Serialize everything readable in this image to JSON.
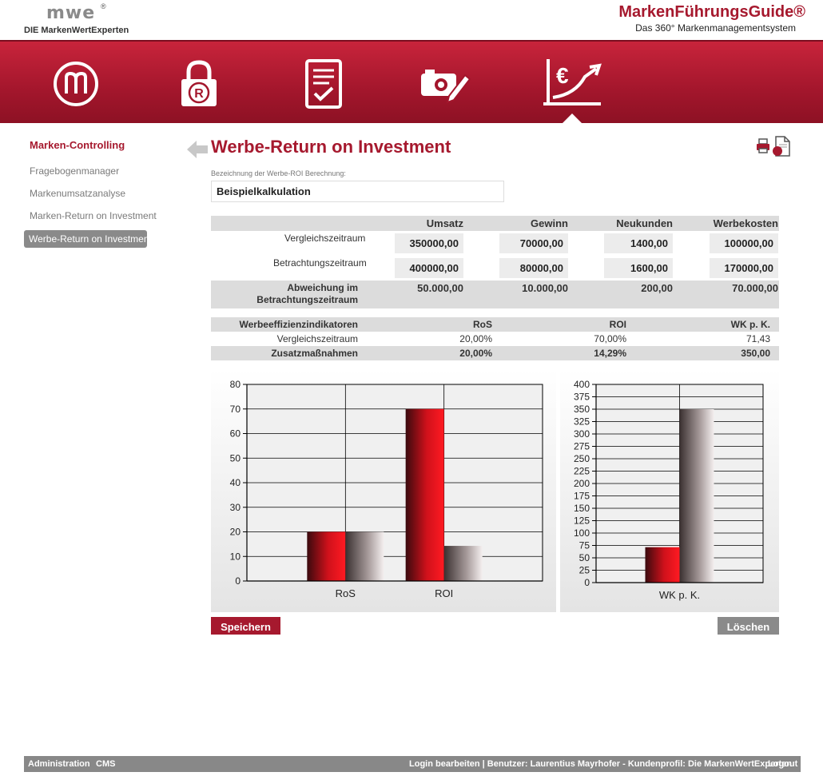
{
  "header": {
    "logo_text": "mwe",
    "logo_reg": "®",
    "logo_sub": "DIE MarkenWertExperten",
    "brand_title": "MarkenFührungsGuide®",
    "brand_subtitle": "Das 360° Markenmanagementsystem"
  },
  "nav_icons": [
    "m-brand-icon",
    "lock-registered-icon",
    "document-check-icon",
    "camera-pencil-icon",
    "euro-growth-chart-icon"
  ],
  "sidebar": {
    "title": "Marken-Controlling",
    "items": [
      {
        "label": "Fragebogenmanager"
      },
      {
        "label": "Markenumsatzanalyse"
      },
      {
        "label": "Marken-Return on Investment"
      },
      {
        "label": "Werbe-Return on Investment"
      }
    ]
  },
  "main": {
    "title": "Werbe-Return on Investment",
    "field_label": "Bezeichnung der Werbe-ROI Berechnung:",
    "field_value": "Beispielkalkulation"
  },
  "table1": {
    "headers": [
      "Umsatz",
      "Gewinn",
      "Neukunden",
      "Werbekosten"
    ],
    "rows": [
      {
        "label": "Vergleichszeitraum",
        "values": [
          "350000,00",
          "70000,00",
          "1400,00",
          "100000,00"
        ]
      },
      {
        "label": "Betrachtungszeitraum",
        "values": [
          "400000,00",
          "80000,00",
          "1600,00",
          "170000,00"
        ]
      }
    ],
    "deviation_label_1": "Abweichung im",
    "deviation_label_2": "Betrachtungszeitraum",
    "deviation_values": [
      "50.000,00",
      "10.000,00",
      "200,00",
      "70.000,00"
    ]
  },
  "table2": {
    "header_label": "Werbeeffizienzindikatoren",
    "headers": [
      "RoS",
      "ROI",
      "WK p. K."
    ],
    "rows": [
      {
        "label": "Vergleichszeitraum",
        "values": [
          "20,00%",
          "70,00%",
          "71,43"
        ]
      },
      {
        "label": "Zusatzmaßnahmen",
        "values": [
          "20,00%",
          "14,29%",
          "350,00"
        ]
      }
    ]
  },
  "chart_data": [
    {
      "type": "bar",
      "categories": [
        "RoS",
        "ROI"
      ],
      "series": [
        {
          "values": [
            20,
            70
          ],
          "color": "#d0111b"
        },
        {
          "values": [
            20,
            14.29
          ],
          "color": "#a89c9c"
        }
      ],
      "ylim": [
        0,
        80
      ],
      "yticks": [
        0,
        10,
        20,
        30,
        40,
        50,
        60,
        70,
        80
      ],
      "grid": true
    },
    {
      "type": "bar",
      "categories": [
        "WK p. K."
      ],
      "series": [
        {
          "values": [
            71.43
          ],
          "color": "#d0111b"
        },
        {
          "values": [
            350
          ],
          "color": "#a89c9c"
        }
      ],
      "ylim": [
        0,
        400
      ],
      "yticks": [
        0,
        25,
        50,
        75,
        100,
        125,
        150,
        175,
        200,
        225,
        250,
        275,
        300,
        325,
        350,
        375,
        400
      ],
      "grid": true
    }
  ],
  "buttons": {
    "save": "Speichern",
    "delete": "Löschen"
  },
  "footer": {
    "admin": "Administration",
    "cms": "CMS",
    "user_info": "Login bearbeiten | Benutzer: Laurentius Mayrhofer - Kundenprofil: Die MarkenWertExperten",
    "logout": "Logout"
  }
}
